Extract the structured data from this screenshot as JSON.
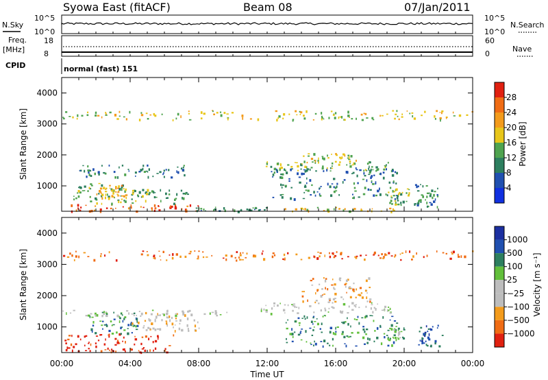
{
  "header": {
    "station": "Syowa East (fitACF)",
    "beam": "Beam 08",
    "date": "07/Jan/2011"
  },
  "nsky_panel": {
    "left_label": "N.Sky",
    "right_label": "N.Search",
    "left_ticks": [
      "10^5",
      "10^0"
    ],
    "right_ticks": [
      "10^5",
      "10^0"
    ]
  },
  "freq_panel": {
    "left_label": "Freq.",
    "left_unit": "[MHz]",
    "right_label": "Nave",
    "left_ticks": [
      "18",
      "8"
    ],
    "right_ticks": [
      "60",
      "0"
    ]
  },
  "cpid": {
    "label": "CPID",
    "mode": "normal (fast) 151"
  },
  "colors": {
    "power": [
      "#1030e0",
      "#2050b0",
      "#2d7f5f",
      "#4fa34f",
      "#e8c61a",
      "#f39b1c",
      "#f06c14",
      "#e02010"
    ],
    "velocity": [
      "#e02010",
      "#f06c14",
      "#f39b1c",
      "#bdbdbd",
      "#bdbdbd",
      "#62bf3b",
      "#2d7f5f",
      "#2050b0",
      "#1c2fa0"
    ]
  },
  "chart_data": [
    {
      "type": "heatmap",
      "name": "power",
      "ylabel": "Slant Range [km]",
      "yticks": [
        1000,
        2000,
        3000,
        4000
      ],
      "ylim": [
        180,
        4500
      ],
      "xlim": [
        0,
        24
      ],
      "xticks": [
        "00:00",
        "04:00",
        "08:00",
        "12:00",
        "16:00",
        "20:00",
        "00:00"
      ],
      "colorbar": {
        "label": "Power [dB]",
        "ticks": [
          "4",
          "8",
          "12",
          "16",
          "20",
          "24",
          "28"
        ],
        "range": [
          0,
          32
        ]
      },
      "regions": [
        {
          "t": [
            0.1,
            8.0
          ],
          "r": [
            200,
            420
          ],
          "v": 27
        },
        {
          "t": [
            0.6,
            3.8
          ],
          "r": [
            450,
            1100
          ],
          "v": 14
        },
        {
          "t": [
            2.0,
            3.9
          ],
          "r": [
            620,
            1050
          ],
          "v": 22
        },
        {
          "t": [
            1.0,
            7.3
          ],
          "r": [
            1300,
            1700
          ],
          "v": 9
        },
        {
          "t": [
            4.0,
            7.6
          ],
          "r": [
            450,
            900
          ],
          "v": 13
        },
        {
          "t": [
            7.8,
            12.0
          ],
          "r": [
            200,
            330
          ],
          "v": 11
        },
        {
          "t": [
            11.6,
            19.3
          ],
          "r": [
            1500,
            1800
          ],
          "v": 14
        },
        {
          "t": [
            14.0,
            17.2
          ],
          "r": [
            1750,
            2100
          ],
          "v": 17
        },
        {
          "t": [
            12.2,
            19.6
          ],
          "r": [
            600,
            1600
          ],
          "v": 9
        },
        {
          "t": [
            13.0,
            19.5
          ],
          "r": [
            200,
            330
          ],
          "v": 19
        },
        {
          "t": [
            20.5,
            22.0
          ],
          "r": [
            350,
            1100
          ],
          "v": 11
        },
        {
          "t": [
            19.0,
            20.3
          ],
          "r": [
            400,
            1000
          ],
          "v": 15
        },
        {
          "t": [
            0.0,
            24.0
          ],
          "r": [
            3150,
            3450
          ],
          "v": 17
        }
      ]
    },
    {
      "type": "heatmap",
      "name": "velocity",
      "ylabel": "Slant Range [km]",
      "yticks": [
        1000,
        2000,
        3000,
        4000
      ],
      "ylim": [
        180,
        4500
      ],
      "xlim": [
        0,
        24
      ],
      "xlabel": "Time UT",
      "xticks": [
        "00:00",
        "04:00",
        "08:00",
        "12:00",
        "16:00",
        "20:00",
        "00:00"
      ],
      "colorbar": {
        "label": "Velocity [m s⁻¹]",
        "ticks": [
          "1000",
          "500",
          "100",
          "25",
          "−25",
          "−100",
          "−500",
          "−1000"
        ]
      },
      "regions": [
        {
          "t": [
            0.1,
            6.5
          ],
          "r": [
            200,
            800
          ],
          "v": 0
        },
        {
          "t": [
            1.5,
            4.5
          ],
          "r": [
            800,
            1500
          ],
          "v": 6
        },
        {
          "t": [
            4.0,
            8.0
          ],
          "r": [
            900,
            1500
          ],
          "v": 3
        },
        {
          "t": [
            0.0,
            10.0
          ],
          "r": [
            1380,
            1550
          ],
          "v": 4
        },
        {
          "t": [
            11.6,
            19.3
          ],
          "r": [
            1450,
            1800
          ],
          "v": 4
        },
        {
          "t": [
            14.0,
            18.0
          ],
          "r": [
            1800,
            2600
          ],
          "v": 2
        },
        {
          "t": [
            13.0,
            19.6
          ],
          "r": [
            400,
            1400
          ],
          "v": 6
        },
        {
          "t": [
            19.0,
            20.0
          ],
          "r": [
            600,
            1000
          ],
          "v": 5
        },
        {
          "t": [
            20.8,
            22.2
          ],
          "r": [
            400,
            1100
          ],
          "v": 7
        },
        {
          "t": [
            0.0,
            24.0
          ],
          "r": [
            3150,
            3450
          ],
          "v": 1
        }
      ]
    }
  ]
}
